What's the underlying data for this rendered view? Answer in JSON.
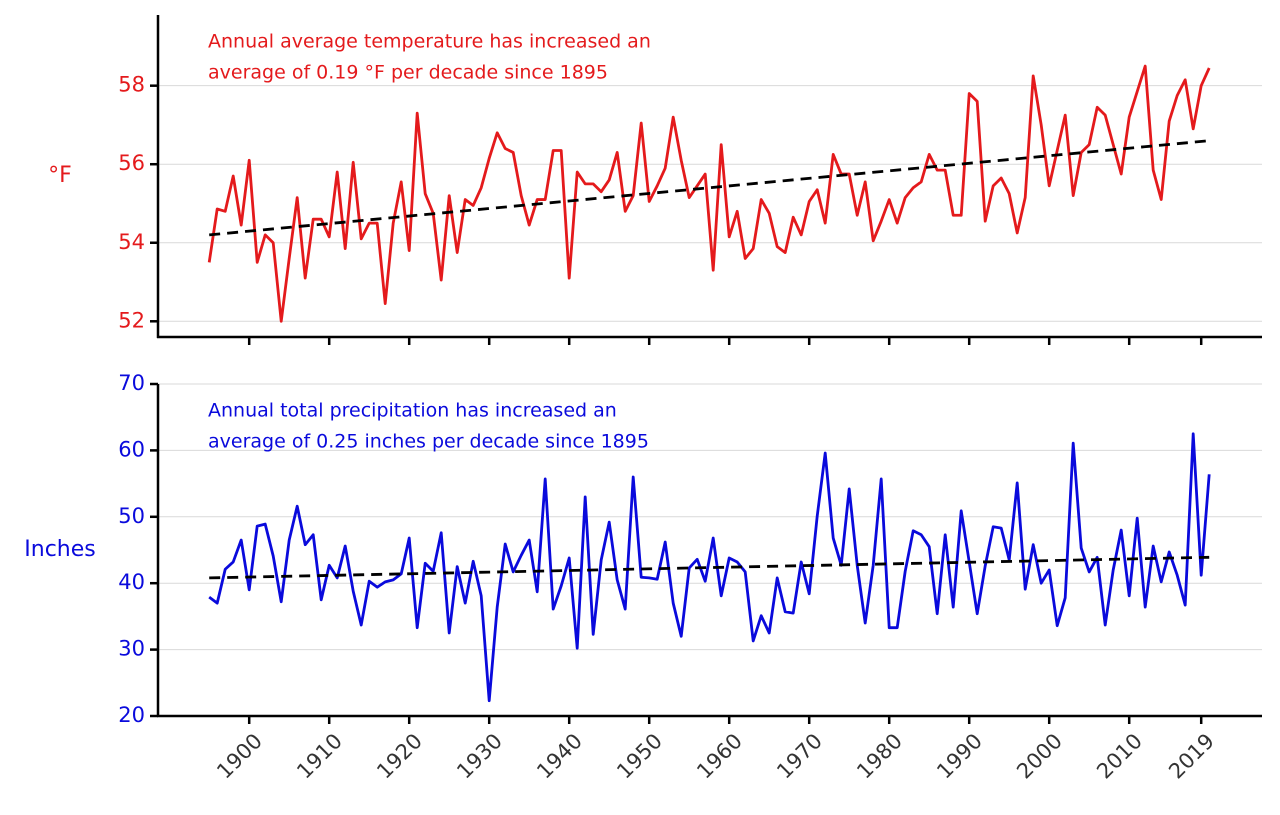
{
  "chart_data": [
    {
      "type": "line",
      "ylabel": "°F",
      "annotation": [
        "Annual average temperature has increased an",
        "average of 0.19 °F per decade since 1895"
      ],
      "color": "#e41a1c",
      "x": [
        1895,
        1896,
        1897,
        1898,
        1899,
        1900,
        1901,
        1902,
        1903,
        1904,
        1905,
        1906,
        1907,
        1908,
        1909,
        1910,
        1911,
        1912,
        1913,
        1914,
        1915,
        1916,
        1917,
        1918,
        1919,
        1920,
        1921,
        1922,
        1923,
        1924,
        1925,
        1926,
        1927,
        1928,
        1929,
        1930,
        1931,
        1932,
        1933,
        1934,
        1935,
        1936,
        1937,
        1938,
        1939,
        1940,
        1941,
        1942,
        1943,
        1944,
        1945,
        1946,
        1947,
        1948,
        1949,
        1950,
        1951,
        1952,
        1953,
        1954,
        1955,
        1956,
        1957,
        1958,
        1959,
        1960,
        1961,
        1962,
        1963,
        1964,
        1965,
        1966,
        1967,
        1968,
        1969,
        1970,
        1971,
        1972,
        1973,
        1974,
        1975,
        1976,
        1977,
        1978,
        1979,
        1980,
        1981,
        1982,
        1983,
        1984,
        1985,
        1986,
        1987,
        1988,
        1989,
        1990,
        1991,
        1992,
        1993,
        1994,
        1995,
        1996,
        1997,
        1998,
        1999,
        2000,
        2001,
        2002,
        2003,
        2004,
        2005,
        2006,
        2007,
        2008,
        2009,
        2010,
        2011,
        2012,
        2013,
        2014,
        2015,
        2016,
        2017,
        2018,
        2019,
        2020
      ],
      "values": [
        53.5,
        54.86,
        54.8,
        55.7,
        54.45,
        56.1,
        53.5,
        54.2,
        54.0,
        52.0,
        53.6,
        55.15,
        53.1,
        54.6,
        54.6,
        54.15,
        55.8,
        53.85,
        56.05,
        54.1,
        54.5,
        54.5,
        52.45,
        54.5,
        55.55,
        53.8,
        57.3,
        55.25,
        54.75,
        53.05,
        55.2,
        53.75,
        55.1,
        54.95,
        55.4,
        56.15,
        56.8,
        56.4,
        56.3,
        55.2,
        54.45,
        55.1,
        55.1,
        56.35,
        56.35,
        53.1,
        55.8,
        55.5,
        55.5,
        55.3,
        55.6,
        56.3,
        54.8,
        55.2,
        57.05,
        55.05,
        55.45,
        55.9,
        57.2,
        56.1,
        55.15,
        55.45,
        55.75,
        53.3,
        56.5,
        54.15,
        54.8,
        53.6,
        53.85,
        55.1,
        54.75,
        53.9,
        53.75,
        54.65,
        54.2,
        55.05,
        55.35,
        54.5,
        56.25,
        55.75,
        55.75,
        54.7,
        55.55,
        54.05,
        54.55,
        55.1,
        54.5,
        55.15,
        55.4,
        55.55,
        56.25,
        55.85,
        55.85,
        54.7,
        54.7,
        57.8,
        57.6,
        54.55,
        55.45,
        55.65,
        55.25,
        54.25,
        55.15,
        58.25,
        57.0,
        55.45,
        56.35,
        57.25,
        55.2,
        56.3,
        56.5,
        57.45,
        57.25,
        56.5,
        55.75,
        57.2,
        57.85,
        58.5,
        55.85,
        55.1,
        57.1,
        57.75,
        58.15,
        56.9,
        58.0,
        58.45
      ],
      "trend": {
        "x": [
          1895,
          2020
        ],
        "values": [
          54.2,
          56.6
        ],
        "color": "#000000"
      },
      "xlim": [
        1888.6,
        2026.6
      ],
      "xticks": [
        1900,
        1910,
        1920,
        1930,
        1940,
        1950,
        1960,
        1970,
        1980,
        1990,
        2000,
        2010,
        2019
      ],
      "ylim": [
        51.6,
        59.8
      ],
      "yticks": [
        52,
        54,
        56,
        58
      ],
      "grid": true
    },
    {
      "type": "line",
      "ylabel": "Inches",
      "annotation": [
        "Annual total precipitation has increased an",
        "average of 0.25 inches per decade since 1895"
      ],
      "color": "#0a0adc",
      "x": [
        1895,
        1896,
        1897,
        1898,
        1899,
        1900,
        1901,
        1902,
        1903,
        1904,
        1905,
        1906,
        1907,
        1908,
        1909,
        1910,
        1911,
        1912,
        1913,
        1914,
        1915,
        1916,
        1917,
        1918,
        1919,
        1920,
        1921,
        1922,
        1923,
        1924,
        1925,
        1926,
        1927,
        1928,
        1929,
        1930,
        1931,
        1932,
        1933,
        1934,
        1935,
        1936,
        1937,
        1938,
        1939,
        1940,
        1941,
        1942,
        1943,
        1944,
        1945,
        1946,
        1947,
        1948,
        1949,
        1950,
        1951,
        1952,
        1953,
        1954,
        1955,
        1956,
        1957,
        1958,
        1959,
        1960,
        1961,
        1962,
        1963,
        1964,
        1965,
        1966,
        1967,
        1968,
        1969,
        1970,
        1971,
        1972,
        1973,
        1974,
        1975,
        1976,
        1977,
        1978,
        1979,
        1980,
        1981,
        1982,
        1983,
        1984,
        1985,
        1986,
        1987,
        1988,
        1989,
        1990,
        1991,
        1992,
        1993,
        1994,
        1995,
        1996,
        1997,
        1998,
        1999,
        2000,
        2001,
        2002,
        2003,
        2004,
        2005,
        2006,
        2007,
        2008,
        2009,
        2010,
        2011,
        2012,
        2013,
        2014,
        2015,
        2016,
        2017,
        2018,
        2019,
        2020
      ],
      "values": [
        37.9,
        37.0,
        42.1,
        43.2,
        46.5,
        39.0,
        48.6,
        48.9,
        44.1,
        37.2,
        46.5,
        51.6,
        45.8,
        47.3,
        37.5,
        42.7,
        40.8,
        45.6,
        38.8,
        33.7,
        40.3,
        39.4,
        40.2,
        40.5,
        41.4,
        46.8,
        33.3,
        43.0,
        41.8,
        47.6,
        32.5,
        42.5,
        37.0,
        43.3,
        38.1,
        22.3,
        36.4,
        45.9,
        41.7,
        44.2,
        46.5,
        38.7,
        55.7,
        36.1,
        39.6,
        43.8,
        30.2,
        53.0,
        32.3,
        43.5,
        49.2,
        40.5,
        36.1,
        56.0,
        40.9,
        40.8,
        40.6,
        46.2,
        37.0,
        32.0,
        42.3,
        43.6,
        40.3,
        46.8,
        38.1,
        43.8,
        43.2,
        41.7,
        31.3,
        35.1,
        32.5,
        40.8,
        35.7,
        35.5,
        43.2,
        38.4,
        50.1,
        59.6,
        46.8,
        42.7,
        54.2,
        42.7,
        34.0,
        42.7,
        55.7,
        33.3,
        33.3,
        41.8,
        47.9,
        47.3,
        45.5,
        35.4,
        47.3,
        36.4,
        50.9,
        43.2,
        35.4,
        42.6,
        48.5,
        48.3,
        43.5,
        55.1,
        39.1,
        45.8,
        40.0,
        42.0,
        33.6,
        37.8,
        61.1,
        45.3,
        41.7,
        43.9,
        33.7,
        42.0,
        48.0,
        38.1,
        49.8,
        36.4,
        45.6,
        40.2,
        44.7,
        41.2,
        36.7,
        62.5,
        41.2,
        56.4
      ],
      "trend": {
        "x": [
          1895,
          2020
        ],
        "values": [
          40.8,
          43.9
        ],
        "color": "#000000"
      },
      "xlim": [
        1888.6,
        2026.6
      ],
      "xticks": [
        1900,
        1910,
        1920,
        1930,
        1940,
        1950,
        1960,
        1970,
        1980,
        1990,
        2000,
        2010,
        2019
      ],
      "ylim": [
        20,
        70
      ],
      "yticks": [
        20,
        30,
        40,
        50,
        60,
        70
      ],
      "grid": true
    }
  ]
}
